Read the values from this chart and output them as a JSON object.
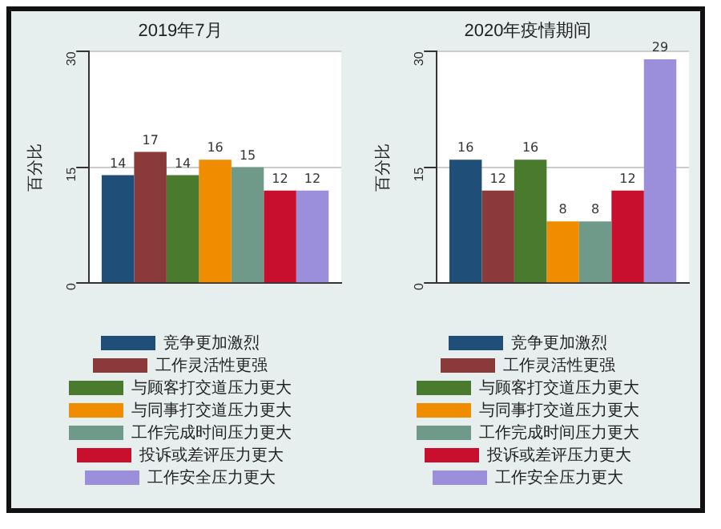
{
  "chart_data": [
    {
      "type": "bar",
      "title": "2019年7月",
      "ylabel": "百分比",
      "categories": [
        null
      ],
      "ylim": [
        0,
        30
      ],
      "yticks": [
        0,
        15,
        30
      ],
      "grid": "y",
      "legend": "bottom",
      "data_labels": true,
      "series": [
        {
          "name": "竞争更加激烈",
          "color": "#1f4e79",
          "values": [
            14
          ]
        },
        {
          "name": "工作灵活性更强",
          "color": "#8b3a3a",
          "values": [
            17
          ]
        },
        {
          "name": "与顾客打交道压力更大",
          "color": "#4a7a2e",
          "values": [
            14
          ]
        },
        {
          "name": "与同事打交道压力更大",
          "color": "#f08c00",
          "values": [
            16
          ]
        },
        {
          "name": "工作完成时间压力更大",
          "color": "#6f9a8a",
          "values": [
            15
          ]
        },
        {
          "name": "投诉或差评压力更大",
          "color": "#c8102e",
          "values": [
            12
          ]
        },
        {
          "name": "工作安全压力更大",
          "color": "#9b8fdb",
          "values": [
            12
          ]
        }
      ]
    },
    {
      "type": "bar",
      "title": "2020年疫情期间",
      "ylabel": "百分比",
      "categories": [
        null
      ],
      "ylim": [
        0,
        30
      ],
      "yticks": [
        0,
        15,
        30
      ],
      "grid": "y",
      "legend": "bottom",
      "data_labels": true,
      "series": [
        {
          "name": "竞争更加激烈",
          "color": "#1f4e79",
          "values": [
            16
          ]
        },
        {
          "name": "工作灵活性更强",
          "color": "#8b3a3a",
          "values": [
            12
          ]
        },
        {
          "name": "与顾客打交道压力更大",
          "color": "#4a7a2e",
          "values": [
            16
          ]
        },
        {
          "name": "与同事打交道压力更大",
          "color": "#f08c00",
          "values": [
            8
          ]
        },
        {
          "name": "工作完成时间压力更大",
          "color": "#6f9a8a",
          "values": [
            8
          ]
        },
        {
          "name": "投诉或差评压力更大",
          "color": "#c8102e",
          "values": [
            12
          ]
        },
        {
          "name": "工作安全压力更大",
          "color": "#9b8fdb",
          "values": [
            29
          ]
        }
      ]
    }
  ]
}
